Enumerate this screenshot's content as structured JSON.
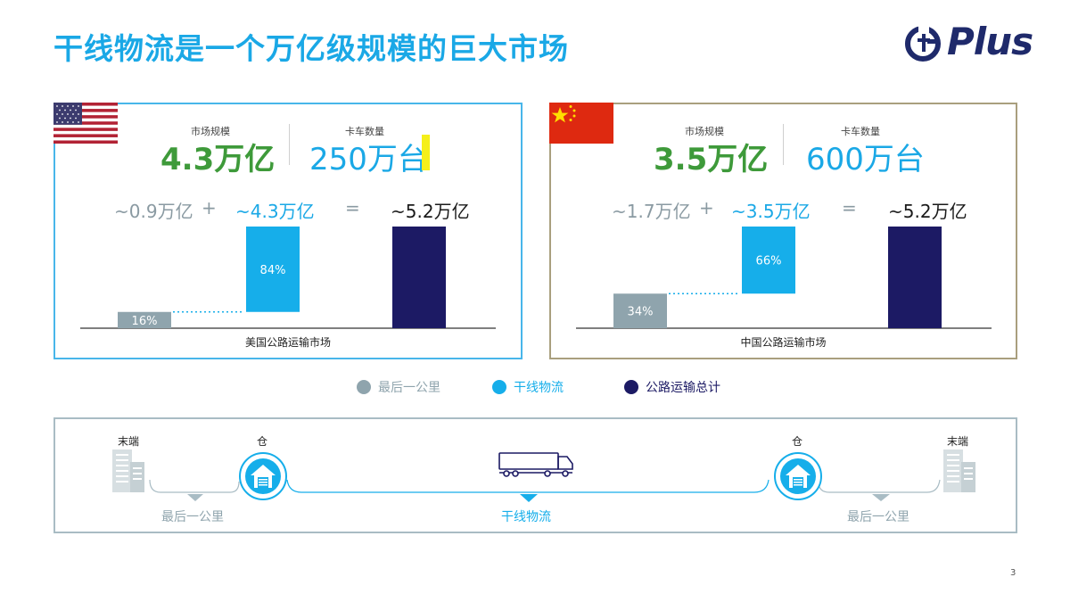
{
  "title": "干线物流是一个万亿级规模的巨大市场",
  "logo": {
    "text": "Plus"
  },
  "colors": {
    "last_mile": "#8fa4ad",
    "trunk": "#16aeea",
    "total": "#1c1a64",
    "green": "#3e9a3a",
    "blue": "#1aa8e6"
  },
  "us": {
    "market_label": "市场规模",
    "market_value": "4.3万亿",
    "trucks_label": "卡车数量",
    "trucks_value": "250万台",
    "eq_last": "~0.9万亿",
    "eq_plus": "+",
    "eq_trunk": "~4.3万亿",
    "eq_equals": "=",
    "eq_total": "~5.2万亿",
    "caption": "美国公路运输市场"
  },
  "cn": {
    "market_label": "市场规模",
    "market_value": "3.5万亿",
    "trucks_label": "卡车数量",
    "trucks_value": "600万台",
    "eq_last": "~1.7万亿",
    "eq_plus": "+",
    "eq_trunk": "~3.5万亿",
    "eq_equals": "=",
    "eq_total": "~5.2万亿",
    "caption": "中国公路运输市场"
  },
  "chart_data": [
    {
      "type": "bar",
      "title": "美国公路运输市场",
      "categories": [
        "最后一公里",
        "干线物流",
        "公路运输总计"
      ],
      "values": [
        16,
        84,
        100
      ],
      "labels": [
        "16%",
        "84%",
        ""
      ],
      "stacked_waterfall": true,
      "ylim": [
        0,
        100
      ]
    },
    {
      "type": "bar",
      "title": "中国公路运输市场",
      "categories": [
        "最后一公里",
        "干线物流",
        "公路运输总计"
      ],
      "values": [
        34,
        66,
        100
      ],
      "labels": [
        "34%",
        "66%",
        ""
      ],
      "stacked_waterfall": true,
      "ylim": [
        0,
        100
      ]
    }
  ],
  "legend": [
    {
      "label": "最后一公里",
      "color": "#8fa4ad"
    },
    {
      "label": "干线物流",
      "color": "#16aeea"
    },
    {
      "label": "公路运输总计",
      "color": "#1c1a64"
    }
  ],
  "flow": {
    "end_left": "末端",
    "warehouse_left": "仓",
    "warehouse_right": "仓",
    "end_right": "末端",
    "last_mile_left": "最后一公里",
    "trunk": "干线物流",
    "last_mile_right": "最后一公里"
  },
  "page_number": "3"
}
